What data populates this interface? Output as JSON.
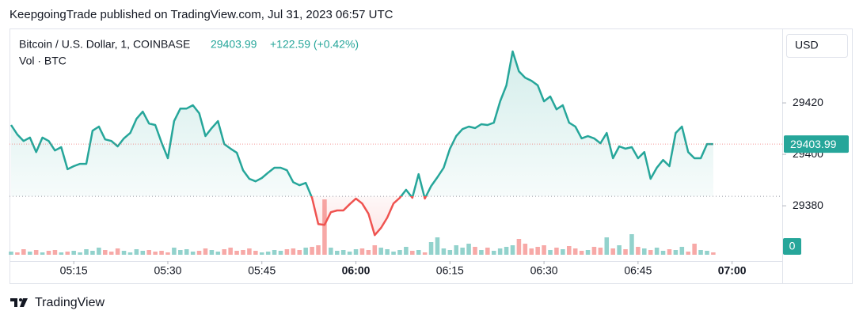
{
  "header": "KeepgoingTrade published on TradingView.com, Jul 31, 2023 06:57 UTC",
  "footer": "TradingView",
  "chart_data": {
    "type": "line",
    "symbol": "Bitcoin / U.S. Dollar, 1, COINBASE",
    "change": "+122.59 (+0.42%)",
    "volume_label": "Vol · BTC",
    "currency": "USD",
    "up_color": "#26a69a",
    "down_color": "#ef5350",
    "baseline": 29383.7,
    "x": [
      "05:05",
      "05:06",
      "05:07",
      "05:08",
      "05:09",
      "05:10",
      "05:11",
      "05:12",
      "05:13",
      "05:14",
      "05:15",
      "05:16",
      "05:17",
      "05:18",
      "05:19",
      "05:20",
      "05:21",
      "05:22",
      "05:23",
      "05:24",
      "05:25",
      "05:26",
      "05:27",
      "05:28",
      "05:29",
      "05:30",
      "05:31",
      "05:32",
      "05:33",
      "05:34",
      "05:35",
      "05:36",
      "05:37",
      "05:38",
      "05:39",
      "05:40",
      "05:41",
      "05:42",
      "05:43",
      "05:44",
      "05:45",
      "05:46",
      "05:47",
      "05:48",
      "05:49",
      "05:50",
      "05:51",
      "05:52",
      "05:53",
      "05:54",
      "05:55",
      "05:56",
      "05:57",
      "05:58",
      "05:59",
      "06:00",
      "06:01",
      "06:02",
      "06:03",
      "06:04",
      "06:05",
      "06:06",
      "06:07",
      "06:08",
      "06:09",
      "06:10",
      "06:11",
      "06:12",
      "06:13",
      "06:14",
      "06:15",
      "06:16",
      "06:17",
      "06:18",
      "06:19",
      "06:20",
      "06:21",
      "06:22",
      "06:23",
      "06:24",
      "06:25",
      "06:26",
      "06:27",
      "06:28",
      "06:29",
      "06:30",
      "06:31",
      "06:32",
      "06:33",
      "06:34",
      "06:35",
      "06:36",
      "06:37",
      "06:38",
      "06:39",
      "06:40",
      "06:41",
      "06:42",
      "06:43",
      "06:44",
      "06:45",
      "06:46",
      "06:47",
      "06:48",
      "06:49",
      "06:50",
      "06:51",
      "06:52",
      "06:53",
      "06:54",
      "06:55",
      "06:56",
      "06:57"
    ],
    "series": [
      {
        "values": [
          29411.4,
          29407.7,
          29405.2,
          29406.5,
          29400.9,
          29406.5,
          29405.2,
          29401.5,
          29402.8,
          29394.2,
          29395.4,
          29396.3,
          29396.3,
          29409.2,
          29410.8,
          29405.8,
          29405.2,
          29403.1,
          29406.2,
          29408.3,
          29413.8,
          29416.6,
          29412.0,
          29411.4,
          29404.6,
          29398.5,
          29412.9,
          29417.8,
          29417.8,
          29419.1,
          29416.0,
          29407.1,
          29410.2,
          29412.9,
          29404.0,
          29402.2,
          29400.6,
          29393.8,
          29390.5,
          29389.5,
          29390.8,
          29392.9,
          29394.8,
          29394.8,
          29393.8,
          29389.2,
          29388.0,
          29388.9,
          29383.1,
          29372.9,
          29372.6,
          29377.5,
          29378.2,
          29378.2,
          29380.6,
          29382.8,
          29380.9,
          29376.9,
          29368.6,
          29371.4,
          29375.4,
          29380.9,
          29383.1,
          29386.2,
          29383.1,
          29392.3,
          29382.8,
          29387.7,
          29391.1,
          29394.8,
          29402.2,
          29407.1,
          29409.8,
          29410.8,
          29410.2,
          29411.7,
          29411.4,
          29412.3,
          29420.6,
          29426.8,
          29440.0,
          29432.3,
          29429.8,
          29428.6,
          29426.8,
          29420.6,
          29422.5,
          29417.5,
          29419.1,
          29412.3,
          29410.8,
          29406.2,
          29407.1,
          29406.2,
          29404.3,
          29408.3,
          29398.5,
          29403.1,
          29402.2,
          29402.8,
          29398.5,
          29400.9,
          29390.5,
          29394.8,
          29397.8,
          29395.4,
          29408.3,
          29410.8,
          29400.9,
          29398.5,
          29398.5,
          29404.0,
          29403.99
        ]
      },
      {
        "axis": "y2",
        "values": [
          4,
          3,
          7,
          4,
          6,
          3,
          5,
          6,
          3,
          4,
          5,
          3,
          7,
          5,
          9,
          6,
          4,
          8,
          5,
          3,
          7,
          5,
          6,
          4,
          5,
          3,
          9,
          6,
          7,
          4,
          5,
          8,
          6,
          4,
          7,
          9,
          5,
          6,
          8,
          5,
          3,
          4,
          6,
          5,
          7,
          8,
          6,
          9,
          10,
          12,
          70,
          9,
          5,
          6,
          4,
          7,
          8,
          6,
          12,
          9,
          7,
          4,
          6,
          10,
          5,
          6,
          3,
          16,
          22,
          8,
          6,
          12,
          9,
          14,
          10,
          6,
          9,
          5,
          8,
          10,
          12,
          20,
          14,
          8,
          10,
          12,
          6,
          9,
          7,
          11,
          8,
          5,
          6,
          10,
          9,
          22,
          8,
          12,
          7,
          26,
          10,
          8,
          6,
          9,
          5,
          7,
          6,
          10,
          4,
          14,
          6,
          5,
          3
        ]
      }
    ],
    "xlim": [
      "05:05",
      "07:08"
    ],
    "xticks": [
      "05:15",
      "05:30",
      "05:45",
      "06:00",
      "06:15",
      "06:30",
      "06:45",
      "07:00"
    ],
    "ylim": [
      29358.5,
      29447.7
    ],
    "yticks": [
      29380,
      29400,
      29420
    ],
    "y2lim": [
      0,
      100
    ],
    "y2ticks": [
      0
    ]
  }
}
